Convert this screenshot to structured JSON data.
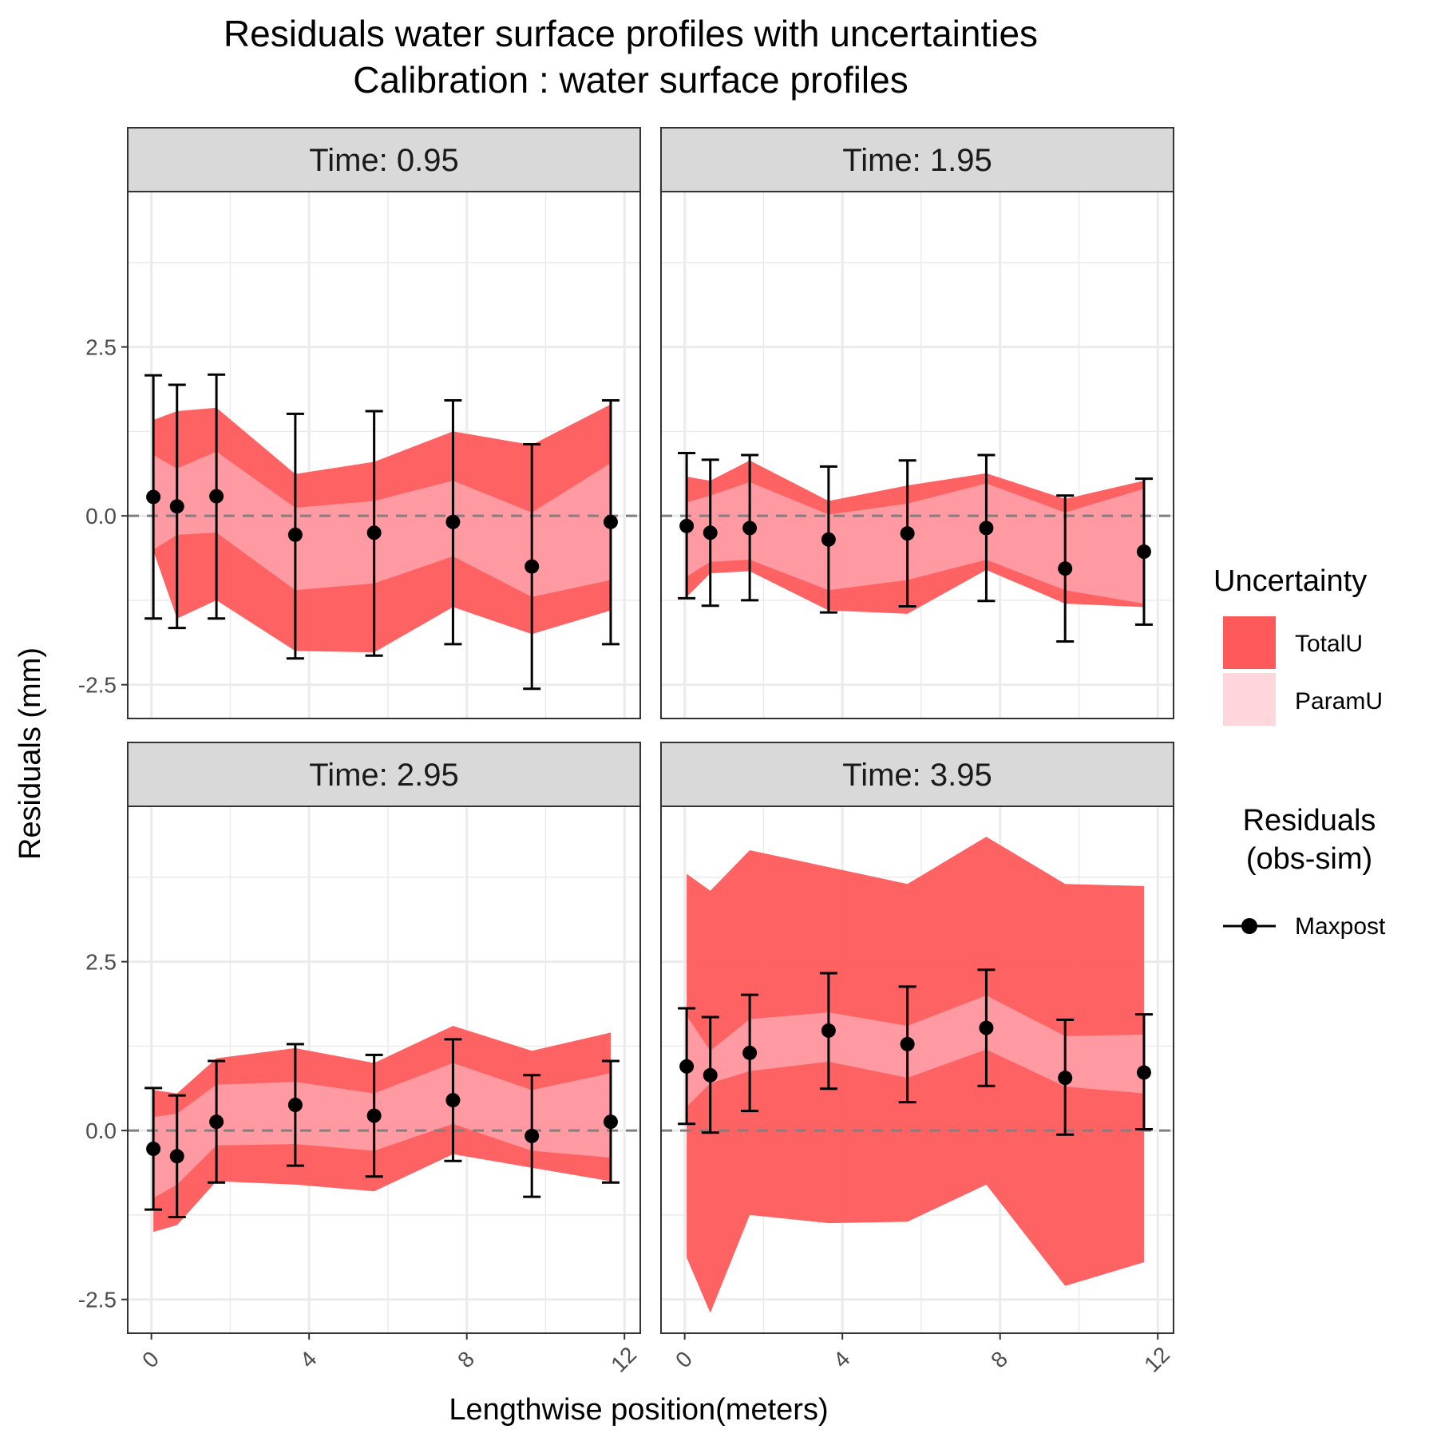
{
  "title": "Residuals water surface profiles with uncertainties",
  "subtitle": "Calibration : water surface profiles",
  "xlabel": "Lengthwise position(meters)",
  "ylabel": "Residuals (mm)",
  "legend": {
    "uncertainty_title": "Uncertainty",
    "uncertainty_items": [
      {
        "label": "TotalU",
        "color": "#ff5a5a"
      },
      {
        "label": "ParamU",
        "color": "#ffd6dc"
      }
    ],
    "residuals_title_line1": "Residuals",
    "residuals_title_line2": "(obs-sim)",
    "residuals_item": "Maxpost"
  },
  "colors": {
    "totalU": "#ff5a5a",
    "paramU": "#ff9aa2",
    "point": "#000000",
    "zero_line": "#808080",
    "strip": "#d9d9d9",
    "grid": "#ebebeb"
  },
  "chart_data": {
    "type": "line",
    "facet_var": "Time",
    "xlim": [
      -0.6,
      12.4
    ],
    "ylim": [
      -3.0,
      4.8
    ],
    "x_ticks": [
      0,
      4,
      8,
      12
    ],
    "y_ticks": [
      -2.5,
      0.0,
      2.5
    ],
    "y_tick_labels": [
      "-2.5",
      "0.0",
      "2.5"
    ],
    "zero_line": 0,
    "panels": [
      {
        "label": "Time:  0.95",
        "x": [
          0.05,
          0.65,
          1.65,
          3.65,
          5.65,
          7.65,
          9.65,
          11.65
        ],
        "maxpost": [
          0.28,
          0.14,
          0.29,
          -0.28,
          -0.25,
          -0.09,
          -0.75,
          -0.09
        ],
        "err_low": [
          -1.52,
          -1.66,
          -1.52,
          -2.11,
          -2.07,
          -1.9,
          -2.56,
          -1.9
        ],
        "err_high": [
          2.08,
          1.94,
          2.09,
          1.51,
          1.55,
          1.71,
          1.06,
          1.71
        ],
        "total_low": [
          -0.52,
          -1.52,
          -1.25,
          -2.0,
          -2.02,
          -1.35,
          -1.75,
          -1.4
        ],
        "total_high": [
          1.42,
          1.55,
          1.6,
          0.62,
          0.8,
          1.25,
          1.05,
          1.65
        ],
        "param_low": [
          -0.5,
          -0.28,
          -0.25,
          -1.1,
          -1.0,
          -0.6,
          -1.2,
          -0.95
        ],
        "param_high": [
          0.9,
          0.7,
          0.95,
          0.12,
          0.22,
          0.52,
          0.05,
          0.78
        ]
      },
      {
        "label": "Time:  1.95",
        "x": [
          0.05,
          0.65,
          1.65,
          3.65,
          5.65,
          7.65,
          9.65,
          11.65
        ],
        "maxpost": [
          -0.15,
          -0.25,
          -0.18,
          -0.35,
          -0.26,
          -0.18,
          -0.78,
          -0.53
        ],
        "err_low": [
          -1.22,
          -1.33,
          -1.25,
          -1.43,
          -1.34,
          -1.26,
          -1.86,
          -1.61
        ],
        "err_high": [
          0.93,
          0.83,
          0.9,
          0.73,
          0.82,
          0.9,
          0.3,
          0.55
        ],
        "total_low": [
          -1.2,
          -0.85,
          -0.82,
          -1.4,
          -1.45,
          -0.8,
          -1.3,
          -1.35
        ],
        "total_high": [
          0.58,
          0.52,
          0.82,
          0.22,
          0.45,
          0.63,
          0.25,
          0.52
        ],
        "param_low": [
          -0.9,
          -0.68,
          -0.65,
          -1.1,
          -0.95,
          -0.65,
          -1.1,
          -1.3
        ],
        "param_high": [
          0.2,
          0.3,
          0.5,
          0.02,
          0.18,
          0.48,
          0.05,
          0.4
        ]
      },
      {
        "label": "Time:  2.95",
        "x": [
          0.05,
          0.65,
          1.65,
          3.65,
          5.65,
          7.65,
          9.65,
          11.65
        ],
        "maxpost": [
          -0.27,
          -0.38,
          0.13,
          0.38,
          0.22,
          0.45,
          -0.08,
          0.13
        ],
        "err_low": [
          -1.17,
          -1.28,
          -0.77,
          -0.52,
          -0.68,
          -0.45,
          -0.98,
          -0.77
        ],
        "err_high": [
          0.63,
          0.52,
          1.03,
          1.28,
          1.12,
          1.35,
          0.82,
          1.03
        ],
        "total_low": [
          -1.5,
          -1.4,
          -0.75,
          -0.8,
          -0.9,
          -0.35,
          -0.55,
          -0.75
        ],
        "total_high": [
          0.6,
          0.55,
          1.07,
          1.22,
          1.0,
          1.55,
          1.18,
          1.45
        ],
        "param_low": [
          -1.0,
          -0.8,
          -0.22,
          -0.2,
          -0.3,
          0.1,
          -0.3,
          -0.4
        ],
        "param_high": [
          0.2,
          0.25,
          0.68,
          0.72,
          0.55,
          1.0,
          0.6,
          0.85
        ]
      },
      {
        "label": "Time:  3.95",
        "x": [
          0.05,
          0.65,
          1.65,
          3.65,
          5.65,
          7.65,
          9.65,
          11.65
        ],
        "maxpost": [
          0.95,
          0.82,
          1.15,
          1.48,
          1.28,
          1.52,
          0.78,
          0.86
        ],
        "err_low": [
          0.1,
          -0.03,
          0.29,
          0.62,
          0.42,
          0.66,
          -0.06,
          0.02
        ],
        "err_high": [
          1.81,
          1.68,
          2.01,
          2.33,
          2.13,
          2.38,
          1.64,
          1.72
        ],
        "total_low": [
          -1.88,
          -2.7,
          -1.25,
          -1.37,
          -1.35,
          -0.8,
          -2.3,
          -1.95
        ],
        "total_high": [
          3.8,
          3.55,
          4.15,
          3.9,
          3.65,
          4.35,
          3.65,
          3.62
        ],
        "param_low": [
          0.35,
          0.7,
          0.88,
          1.02,
          0.78,
          1.2,
          0.65,
          0.55
        ],
        "param_high": [
          1.7,
          1.18,
          1.65,
          1.75,
          1.55,
          2.0,
          1.4,
          1.42
        ]
      }
    ]
  }
}
